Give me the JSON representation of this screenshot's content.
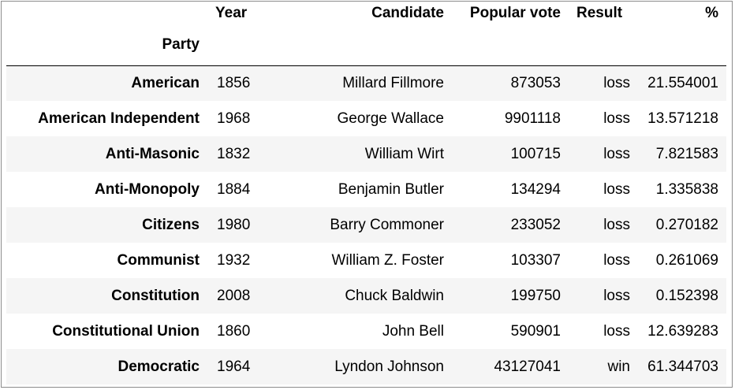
{
  "table": {
    "columns": {
      "year": "Year",
      "candidate": "Candidate",
      "popular_vote": "Popular vote",
      "result": "Result",
      "percent": "%"
    },
    "index_name": "Party",
    "rows": [
      {
        "party": "American",
        "year": "1856",
        "candidate": "Millard Fillmore",
        "popular_vote": "873053",
        "result": "loss",
        "percent": "21.554001"
      },
      {
        "party": "American Independent",
        "year": "1968",
        "candidate": "George Wallace",
        "popular_vote": "9901118",
        "result": "loss",
        "percent": "13.571218"
      },
      {
        "party": "Anti-Masonic",
        "year": "1832",
        "candidate": "William Wirt",
        "popular_vote": "100715",
        "result": "loss",
        "percent": "7.821583"
      },
      {
        "party": "Anti-Monopoly",
        "year": "1884",
        "candidate": "Benjamin Butler",
        "popular_vote": "134294",
        "result": "loss",
        "percent": "1.335838"
      },
      {
        "party": "Citizens",
        "year": "1980",
        "candidate": "Barry Commoner",
        "popular_vote": "233052",
        "result": "loss",
        "percent": "0.270182"
      },
      {
        "party": "Communist",
        "year": "1932",
        "candidate": "William Z. Foster",
        "popular_vote": "103307",
        "result": "loss",
        "percent": "0.261069"
      },
      {
        "party": "Constitution",
        "year": "2008",
        "candidate": "Chuck Baldwin",
        "popular_vote": "199750",
        "result": "loss",
        "percent": "0.152398"
      },
      {
        "party": "Constitutional Union",
        "year": "1860",
        "candidate": "John Bell",
        "popular_vote": "590901",
        "result": "loss",
        "percent": "12.639283"
      },
      {
        "party": "Democratic",
        "year": "1964",
        "candidate": "Lyndon Johnson",
        "popular_vote": "43127041",
        "result": "win",
        "percent": "61.344703"
      }
    ]
  }
}
